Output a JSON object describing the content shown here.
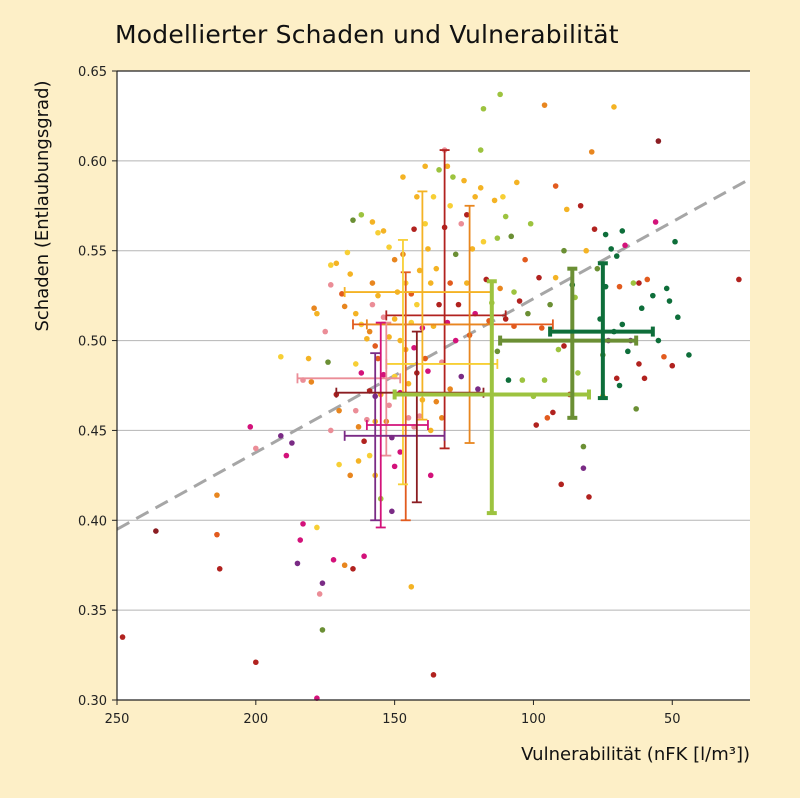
{
  "chart_data": {
    "type": "scatter",
    "title": "Modellierter Schaden und Vulnerabilität",
    "xlabel": "Vulnerabilität (nFK [l/m³])",
    "ylabel": "Schaden (Entlaubungsgrad)",
    "x_reversed": true,
    "xlim": [
      250,
      22
    ],
    "ylim": [
      0.3,
      0.65
    ],
    "xticks": [
      250,
      200,
      150,
      100,
      50
    ],
    "yticks": [
      0.3,
      0.35,
      0.4,
      0.45,
      0.5,
      0.55,
      0.6,
      0.65
    ],
    "grid": "horizontal",
    "trend_line": {
      "style": "dashed",
      "color": "#a6a6a6",
      "x": [
        250,
        22
      ],
      "y": [
        0.395,
        0.59
      ]
    },
    "colors": {
      "dark-red": "#b1221f",
      "orange-red": "#e25b1e",
      "orange": "#e8861f",
      "amber": "#f4b324",
      "yellow": "#f7cf35",
      "pink": "#eb8d97",
      "magenta": "#d3127a",
      "purple": "#7a2b85",
      "olive": "#6b8f34",
      "lime": "#9dc33f",
      "dark-green": "#0e6e3a",
      "maroon": "#8b1d22"
    },
    "group_means": [
      {
        "color": "dark-red",
        "x": 132,
        "xerr": [
          153,
          110
        ],
        "y": 0.514,
        "yerr": [
          0.44,
          0.606
        ],
        "thick": false
      },
      {
        "color": "orange-red",
        "x": 146,
        "xerr": [
          165,
          93
        ],
        "y": 0.509,
        "yerr": [
          0.4,
          0.538
        ],
        "thick": false
      },
      {
        "color": "orange",
        "x": 123,
        "xerr": [
          160,
          115
        ],
        "y": 0.509,
        "yerr": [
          0.443,
          0.575
        ],
        "thick": false
      },
      {
        "color": "amber",
        "x": 140,
        "xerr": [
          168,
          115
        ],
        "y": 0.527,
        "yerr": [
          0.456,
          0.583
        ],
        "thick": false
      },
      {
        "color": "yellow",
        "x": 147,
        "xerr": [
          153,
          113
        ],
        "y": 0.487,
        "yerr": [
          0.42,
          0.556
        ],
        "thick": false
      },
      {
        "color": "pink",
        "x": 153,
        "xerr": [
          185,
          148
        ],
        "y": 0.479,
        "yerr": [
          0.436,
          0.51
        ],
        "thick": false
      },
      {
        "color": "magenta",
        "x": 155,
        "xerr": [
          160,
          138
        ],
        "y": 0.453,
        "yerr": [
          0.396,
          0.51
        ],
        "thick": false
      },
      {
        "color": "purple",
        "x": 157,
        "xerr": [
          168,
          132
        ],
        "y": 0.447,
        "yerr": [
          0.4,
          0.493
        ],
        "thick": false
      },
      {
        "color": "maroon",
        "x": 142,
        "xerr": [
          171,
          118
        ],
        "y": 0.471,
        "yerr": [
          0.41,
          0.505
        ],
        "thick": false
      },
      {
        "color": "lime",
        "x": 115,
        "xerr": [
          150,
          80
        ],
        "y": 0.47,
        "yerr": [
          0.404,
          0.533
        ],
        "thick": true
      },
      {
        "color": "olive",
        "x": 86,
        "xerr": [
          112,
          63
        ],
        "y": 0.5,
        "yerr": [
          0.457,
          0.54
        ],
        "thick": true
      },
      {
        "color": "dark-green",
        "x": 75,
        "xerr": [
          94,
          57
        ],
        "y": 0.505,
        "yerr": [
          0.468,
          0.543
        ],
        "thick": true
      }
    ],
    "points": [
      [
        248,
        0.335,
        "dark-red"
      ],
      [
        236,
        0.394,
        "maroon"
      ],
      [
        214,
        0.414,
        "orange"
      ],
      [
        214,
        0.392,
        "orange-red"
      ],
      [
        213,
        0.373,
        "dark-red"
      ],
      [
        202,
        0.452,
        "magenta"
      ],
      [
        200,
        0.44,
        "pink"
      ],
      [
        200,
        0.321,
        "dark-red"
      ],
      [
        191,
        0.491,
        "yellow"
      ],
      [
        191,
        0.447,
        "purple"
      ],
      [
        189,
        0.436,
        "magenta"
      ],
      [
        187,
        0.443,
        "purple"
      ],
      [
        185,
        0.376,
        "purple"
      ],
      [
        184,
        0.389,
        "magenta"
      ],
      [
        183,
        0.478,
        "pink"
      ],
      [
        183,
        0.398,
        "magenta"
      ],
      [
        181,
        0.49,
        "amber"
      ],
      [
        180,
        0.477,
        "orange"
      ],
      [
        179,
        0.518,
        "orange"
      ],
      [
        178,
        0.515,
        "amber"
      ],
      [
        178,
        0.301,
        "magenta"
      ],
      [
        178,
        0.396,
        "yellow"
      ],
      [
        177,
        0.359,
        "pink"
      ],
      [
        176,
        0.365,
        "purple"
      ],
      [
        176,
        0.339,
        "olive"
      ],
      [
        175,
        0.505,
        "pink"
      ],
      [
        174,
        0.488,
        "olive"
      ],
      [
        173,
        0.542,
        "yellow"
      ],
      [
        173,
        0.531,
        "pink"
      ],
      [
        173,
        0.45,
        "pink"
      ],
      [
        172,
        0.378,
        "magenta"
      ],
      [
        171,
        0.543,
        "amber"
      ],
      [
        171,
        0.47,
        "dark-red"
      ],
      [
        170,
        0.461,
        "orange"
      ],
      [
        170,
        0.431,
        "yellow"
      ],
      [
        169,
        0.526,
        "orange-red"
      ],
      [
        168,
        0.519,
        "orange"
      ],
      [
        168,
        0.375,
        "orange"
      ],
      [
        167,
        0.549,
        "yellow"
      ],
      [
        166,
        0.537,
        "amber"
      ],
      [
        166,
        0.425,
        "orange"
      ],
      [
        165,
        0.567,
        "olive"
      ],
      [
        165,
        0.373,
        "dark-red"
      ],
      [
        164,
        0.515,
        "amber"
      ],
      [
        164,
        0.487,
        "yellow"
      ],
      [
        164,
        0.461,
        "pink"
      ],
      [
        163,
        0.452,
        "orange"
      ],
      [
        163,
        0.433,
        "amber"
      ],
      [
        162,
        0.57,
        "lime"
      ],
      [
        162,
        0.509,
        "yellow"
      ],
      [
        162,
        0.482,
        "magenta"
      ],
      [
        161,
        0.444,
        "dark-red"
      ],
      [
        161,
        0.38,
        "magenta"
      ],
      [
        160,
        0.501,
        "amber"
      ],
      [
        160,
        0.456,
        "pink"
      ],
      [
        159,
        0.505,
        "orange"
      ],
      [
        159,
        0.472,
        "dark-red"
      ],
      [
        159,
        0.436,
        "yellow"
      ],
      [
        158,
        0.566,
        "amber"
      ],
      [
        158,
        0.532,
        "orange"
      ],
      [
        158,
        0.52,
        "pink"
      ],
      [
        157,
        0.497,
        "orange-red"
      ],
      [
        157,
        0.469,
        "purple"
      ],
      [
        157,
        0.455,
        "amber"
      ],
      [
        157,
        0.425,
        "amber"
      ],
      [
        156,
        0.56,
        "yellow"
      ],
      [
        156,
        0.525,
        "amber"
      ],
      [
        156,
        0.49,
        "orange-red"
      ],
      [
        155,
        0.47,
        "amber"
      ],
      [
        155,
        0.412,
        "lime"
      ],
      [
        154,
        0.561,
        "amber"
      ],
      [
        154,
        0.513,
        "pink"
      ],
      [
        154,
        0.481,
        "magenta"
      ],
      [
        153,
        0.455,
        "orange"
      ],
      [
        152,
        0.552,
        "yellow"
      ],
      [
        152,
        0.502,
        "amber"
      ],
      [
        152,
        0.464,
        "pink"
      ],
      [
        151,
        0.446,
        "purple"
      ],
      [
        151,
        0.405,
        "purple"
      ],
      [
        150,
        0.545,
        "orange"
      ],
      [
        150,
        0.512,
        "amber"
      ],
      [
        150,
        0.48,
        "yellow"
      ],
      [
        150,
        0.43,
        "magenta"
      ],
      [
        149,
        0.527,
        "amber"
      ],
      [
        148,
        0.5,
        "amber"
      ],
      [
        148,
        0.471,
        "magenta"
      ],
      [
        148,
        0.438,
        "magenta"
      ],
      [
        147,
        0.591,
        "amber"
      ],
      [
        147,
        0.548,
        "orange"
      ],
      [
        146,
        0.532,
        "yellow"
      ],
      [
        146,
        0.495,
        "amber"
      ],
      [
        145,
        0.476,
        "amber"
      ],
      [
        145,
        0.457,
        "pink"
      ],
      [
        144,
        0.526,
        "orange-red"
      ],
      [
        144,
        0.51,
        "yellow"
      ],
      [
        144,
        0.363,
        "amber"
      ],
      [
        143,
        0.562,
        "dark-red"
      ],
      [
        143,
        0.496,
        "magenta"
      ],
      [
        143,
        0.452,
        "pink"
      ],
      [
        142,
        0.58,
        "amber"
      ],
      [
        142,
        0.52,
        "yellow"
      ],
      [
        142,
        0.482,
        "dark-red"
      ],
      [
        141,
        0.539,
        "amber"
      ],
      [
        141,
        0.458,
        "pink"
      ],
      [
        140,
        0.507,
        "magenta"
      ],
      [
        140,
        0.467,
        "amber"
      ],
      [
        139,
        0.597,
        "amber"
      ],
      [
        139,
        0.565,
        "yellow"
      ],
      [
        139,
        0.49,
        "orange-red"
      ],
      [
        138,
        0.551,
        "amber"
      ],
      [
        138,
        0.483,
        "magenta"
      ],
      [
        137,
        0.532,
        "amber"
      ],
      [
        137,
        0.45,
        "amber"
      ],
      [
        137,
        0.425,
        "magenta"
      ],
      [
        136,
        0.58,
        "yellow"
      ],
      [
        136,
        0.508,
        "amber"
      ],
      [
        136,
        0.314,
        "dark-red"
      ],
      [
        135,
        0.54,
        "amber"
      ],
      [
        135,
        0.466,
        "orange"
      ],
      [
        134,
        0.595,
        "lime"
      ],
      [
        134,
        0.52,
        "dark-red"
      ],
      [
        133,
        0.488,
        "pink"
      ],
      [
        133,
        0.457,
        "orange"
      ],
      [
        132,
        0.606,
        "pink"
      ],
      [
        132,
        0.563,
        "dark-red"
      ],
      [
        131,
        0.597,
        "amber"
      ],
      [
        131,
        0.51,
        "magenta"
      ],
      [
        130,
        0.575,
        "yellow"
      ],
      [
        130,
        0.532,
        "orange-red"
      ],
      [
        130,
        0.473,
        "orange"
      ],
      [
        129,
        0.591,
        "lime"
      ],
      [
        128,
        0.548,
        "olive"
      ],
      [
        128,
        0.5,
        "magenta"
      ],
      [
        127,
        0.52,
        "dark-red"
      ],
      [
        126,
        0.565,
        "pink"
      ],
      [
        126,
        0.48,
        "purple"
      ],
      [
        125,
        0.589,
        "amber"
      ],
      [
        124,
        0.57,
        "dark-red"
      ],
      [
        124,
        0.532,
        "amber"
      ],
      [
        123,
        0.503,
        "orange-red"
      ],
      [
        122,
        0.551,
        "amber"
      ],
      [
        121,
        0.58,
        "amber"
      ],
      [
        121,
        0.515,
        "magenta"
      ],
      [
        120,
        0.473,
        "purple"
      ],
      [
        119,
        0.606,
        "lime"
      ],
      [
        119,
        0.585,
        "amber"
      ],
      [
        118,
        0.629,
        "lime"
      ],
      [
        118,
        0.555,
        "yellow"
      ],
      [
        117,
        0.534,
        "dark-red"
      ],
      [
        116,
        0.511,
        "orange-red"
      ],
      [
        115,
        0.521,
        "lime"
      ],
      [
        114,
        0.578,
        "amber"
      ],
      [
        113,
        0.557,
        "lime"
      ],
      [
        113,
        0.494,
        "olive"
      ],
      [
        112,
        0.637,
        "lime"
      ],
      [
        112,
        0.529,
        "orange"
      ],
      [
        111,
        0.58,
        "yellow"
      ],
      [
        110,
        0.569,
        "lime"
      ],
      [
        110,
        0.512,
        "dark-red"
      ],
      [
        109,
        0.478,
        "dark-green"
      ],
      [
        108,
        0.558,
        "olive"
      ],
      [
        107,
        0.527,
        "lime"
      ],
      [
        107,
        0.508,
        "orange-red"
      ],
      [
        106,
        0.588,
        "amber"
      ],
      [
        105,
        0.522,
        "dark-red"
      ],
      [
        104,
        0.478,
        "lime"
      ],
      [
        103,
        0.545,
        "orange-red"
      ],
      [
        102,
        0.515,
        "olive"
      ],
      [
        101,
        0.565,
        "lime"
      ],
      [
        100,
        0.469,
        "lime"
      ],
      [
        99,
        0.453,
        "dark-red"
      ],
      [
        98,
        0.535,
        "dark-red"
      ],
      [
        97,
        0.507,
        "orange-red"
      ],
      [
        96,
        0.631,
        "orange"
      ],
      [
        96,
        0.478,
        "lime"
      ],
      [
        95,
        0.457,
        "orange-red"
      ],
      [
        94,
        0.52,
        "olive"
      ],
      [
        93,
        0.46,
        "dark-red"
      ],
      [
        92,
        0.586,
        "orange-red"
      ],
      [
        92,
        0.535,
        "amber"
      ],
      [
        91,
        0.495,
        "lime"
      ],
      [
        90,
        0.42,
        "dark-red"
      ],
      [
        89,
        0.55,
        "olive"
      ],
      [
        89,
        0.497,
        "dark-red"
      ],
      [
        88,
        0.573,
        "amber"
      ],
      [
        87,
        0.47,
        "dark-red"
      ],
      [
        86,
        0.531,
        "dark-green"
      ],
      [
        85,
        0.524,
        "lime"
      ],
      [
        84,
        0.482,
        "lime"
      ],
      [
        83,
        0.575,
        "dark-red"
      ],
      [
        82,
        0.441,
        "olive"
      ],
      [
        82,
        0.429,
        "purple"
      ],
      [
        81,
        0.55,
        "amber"
      ],
      [
        80,
        0.413,
        "dark-red"
      ],
      [
        79,
        0.605,
        "orange"
      ],
      [
        78,
        0.562,
        "dark-red"
      ],
      [
        77,
        0.54,
        "olive"
      ],
      [
        76,
        0.512,
        "dark-green"
      ],
      [
        75,
        0.492,
        "olive"
      ],
      [
        75,
        0.469,
        "amber"
      ],
      [
        74,
        0.559,
        "dark-green"
      ],
      [
        74,
        0.53,
        "dark-green"
      ],
      [
        73,
        0.5,
        "purple"
      ],
      [
        72,
        0.551,
        "dark-green"
      ],
      [
        71,
        0.63,
        "amber"
      ],
      [
        71,
        0.505,
        "dark-green"
      ],
      [
        70,
        0.547,
        "dark-green"
      ],
      [
        70,
        0.479,
        "dark-red"
      ],
      [
        69,
        0.53,
        "orange-red"
      ],
      [
        69,
        0.475,
        "dark-green"
      ],
      [
        68,
        0.561,
        "dark-green"
      ],
      [
        68,
        0.509,
        "dark-green"
      ],
      [
        67,
        0.553,
        "magenta"
      ],
      [
        66,
        0.494,
        "dark-green"
      ],
      [
        65,
        0.5,
        "purple"
      ],
      [
        64,
        0.532,
        "lime"
      ],
      [
        63,
        0.462,
        "olive"
      ],
      [
        62,
        0.532,
        "dark-red"
      ],
      [
        62,
        0.487,
        "dark-red"
      ],
      [
        61,
        0.518,
        "dark-green"
      ],
      [
        60,
        0.479,
        "dark-red"
      ],
      [
        59,
        0.534,
        "orange-red"
      ],
      [
        57,
        0.525,
        "dark-green"
      ],
      [
        56,
        0.566,
        "magenta"
      ],
      [
        55,
        0.611,
        "maroon"
      ],
      [
        55,
        0.5,
        "dark-green"
      ],
      [
        53,
        0.491,
        "orange-red"
      ],
      [
        52,
        0.529,
        "dark-green"
      ],
      [
        51,
        0.522,
        "dark-green"
      ],
      [
        50,
        0.486,
        "dark-red"
      ],
      [
        49,
        0.555,
        "dark-green"
      ],
      [
        48,
        0.513,
        "dark-green"
      ],
      [
        44,
        0.492,
        "dark-green"
      ],
      [
        26,
        0.534,
        "dark-red"
      ]
    ]
  }
}
